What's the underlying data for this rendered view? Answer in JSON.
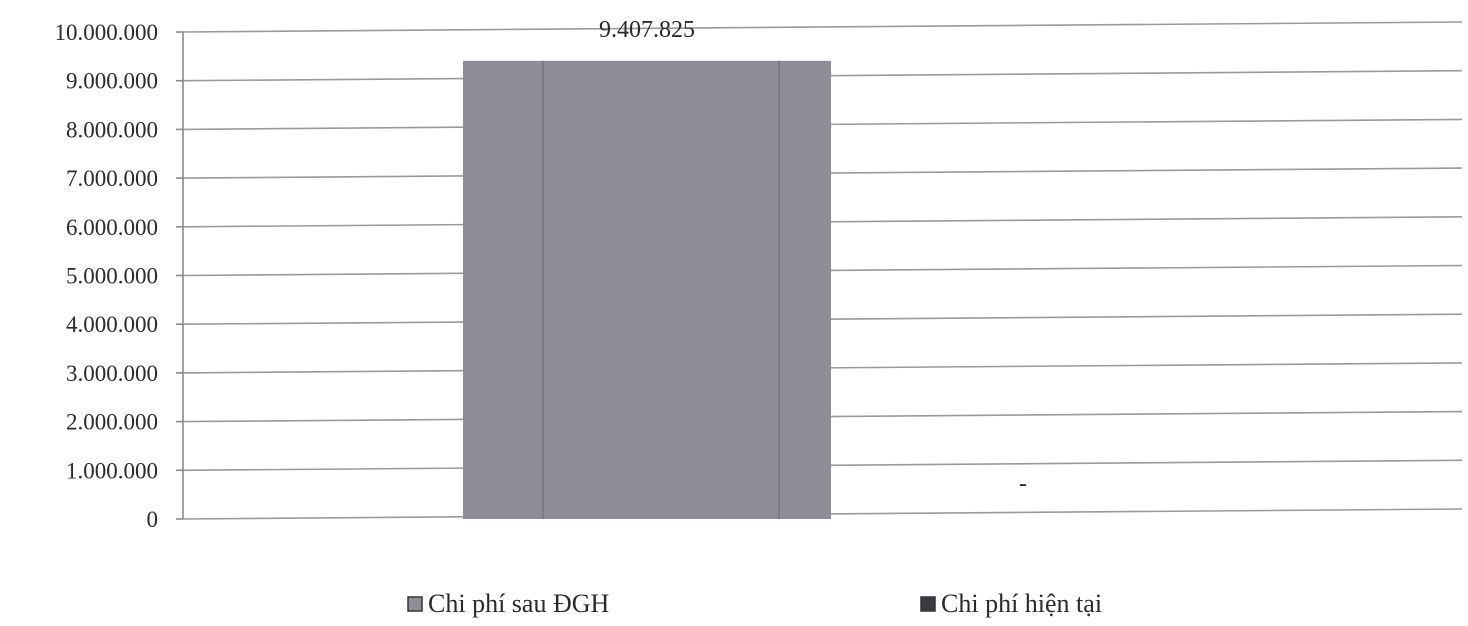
{
  "chart_data": {
    "type": "bar",
    "title": "",
    "xlabel": "",
    "ylabel": "",
    "categories": [
      ""
    ],
    "ylim": [
      0,
      10000000
    ],
    "y_ticks": [
      0,
      1000000,
      2000000,
      3000000,
      4000000,
      5000000,
      6000000,
      7000000,
      8000000,
      9000000,
      10000000
    ],
    "y_tick_labels": [
      "0",
      "1.000.000",
      "2.000.000",
      "3.000.000",
      "4.000.000",
      "5.000.000",
      "6.000.000",
      "7.000.000",
      "8.000.000",
      "9.000.000",
      "10.000.000"
    ],
    "grid": true,
    "legend_position": "bottom",
    "series": [
      {
        "name": "Chi phí sau ĐGH",
        "values": [
          9407825
        ],
        "data_labels": [
          "9.407.825"
        ],
        "color": "#8e8e96"
      },
      {
        "name": "Chi phí hiện tại",
        "values": [
          0
        ],
        "data_labels": [
          "-"
        ],
        "color": "#3a3a3e"
      }
    ]
  }
}
